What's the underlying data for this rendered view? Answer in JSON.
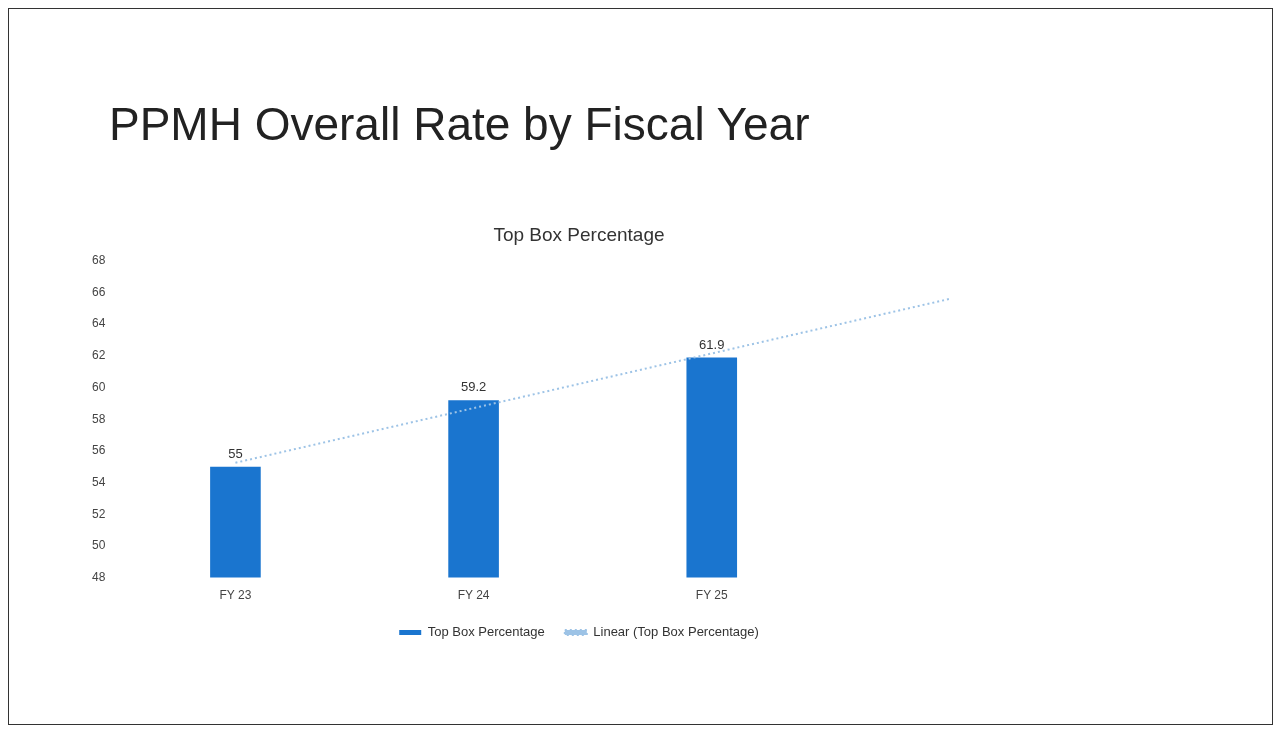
{
  "chart_data": {
    "type": "bar",
    "title": "PPMH Overall Rate by Fiscal Year",
    "subtitle": "Top Box Percentage",
    "categories": [
      "FY 23",
      "FY 24",
      "FY 25",
      null
    ],
    "series": [
      {
        "name": "Top Box Percentage",
        "color": "#1a75cf",
        "values": [
          55,
          59.2,
          61.9,
          null
        ],
        "value_labels": [
          "55",
          "59.2",
          "61.9",
          null
        ]
      },
      {
        "name": "Linear (Top Box Percentage)",
        "type": "line",
        "color": "#9dc3e6",
        "line_style": "dotted",
        "marker": "none",
        "values": [
          55.25,
          58.7,
          62.15,
          65.6
        ]
      }
    ],
    "ylim": [
      48,
      68
    ],
    "yticks": [
      48,
      50,
      52,
      54,
      56,
      58,
      60,
      62,
      64,
      66,
      68
    ],
    "legend": "bottom"
  }
}
